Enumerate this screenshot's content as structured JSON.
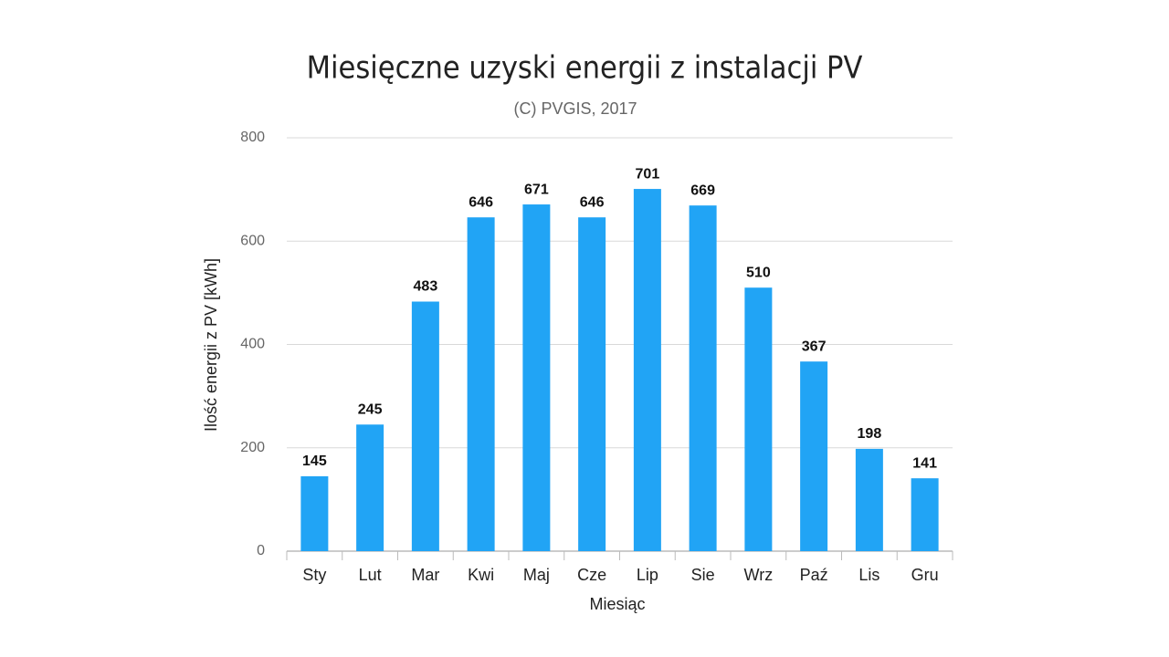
{
  "chart_data": {
    "type": "bar",
    "title": "Miesięczne uzyski energii z instalacji PV",
    "subtitle": "(C) PVGIS, 2017",
    "x_label": "Miesiąc",
    "y_label": "Ilość energii z PV [kWh]",
    "categories": [
      "Sty",
      "Lut",
      "Mar",
      "Kwi",
      "Maj",
      "Cze",
      "Lip",
      "Sie",
      "Wrz",
      "Paź",
      "Lis",
      "Gru"
    ],
    "values": [
      145,
      245,
      483,
      646,
      671,
      646,
      701,
      669,
      510,
      367,
      198,
      141
    ],
    "color": "#21a4f5",
    "ylim": [
      0,
      800
    ],
    "yticks": [
      0,
      200,
      400,
      600,
      800
    ],
    "grid": true
  }
}
